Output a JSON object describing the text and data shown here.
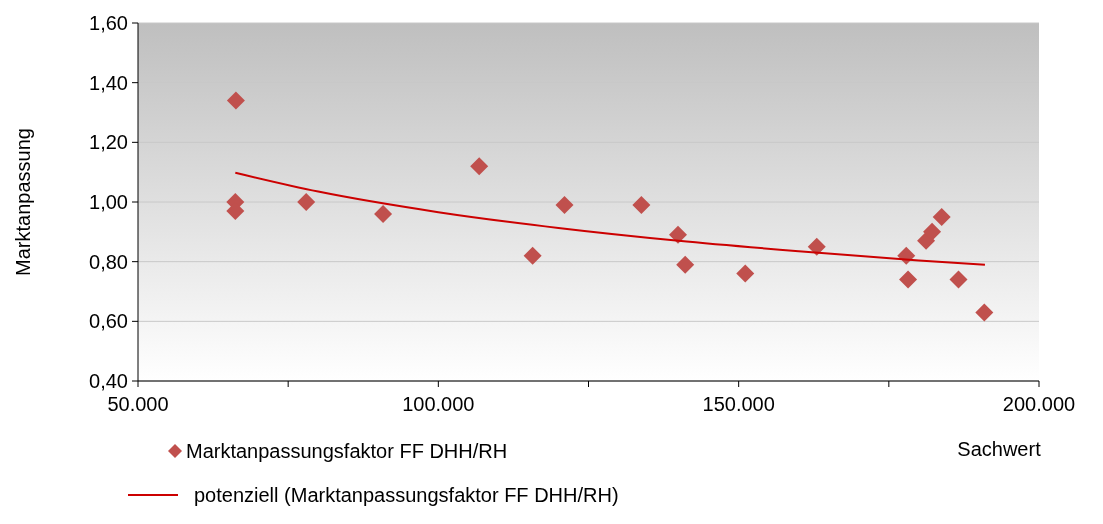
{
  "chart_data": {
    "type": "scatter",
    "xlabel": "Sachwert",
    "ylabel": "Marktanpassung",
    "xlim": [
      50000,
      200000
    ],
    "ylim": [
      0.4,
      1.6
    ],
    "xticks": [
      {
        "value": 50000,
        "label": "50.000"
      },
      {
        "value": 75000,
        "label": null
      },
      {
        "value": 100000,
        "label": "100.000"
      },
      {
        "value": 125000,
        "label": null
      },
      {
        "value": 150000,
        "label": "150.000"
      },
      {
        "value": 175000,
        "label": null
      },
      {
        "value": 200000,
        "label": "200.000"
      }
    ],
    "yticks": [
      {
        "value": 0.4,
        "label": "0,40"
      },
      {
        "value": 0.6,
        "label": "0,60"
      },
      {
        "value": 0.8,
        "label": "0,80"
      },
      {
        "value": 1.0,
        "label": "1,00"
      },
      {
        "value": 1.2,
        "label": "1,20"
      },
      {
        "value": 1.4,
        "label": "1,40"
      },
      {
        "value": 1.6,
        "label": "1,60"
      }
    ],
    "grid": "y",
    "legend": "bottom left",
    "series": [
      {
        "name": "Marktanpassungsfaktor FF DHH/RH",
        "marker": "diamond",
        "color": "#c0504d",
        "x": [
          66300,
          66200,
          66200,
          78000,
          90800,
          106800,
          115700,
          121000,
          133800,
          139900,
          141100,
          151100,
          163000,
          177900,
          178200,
          181200,
          182200,
          183800,
          186600,
          190900
        ],
        "values": [
          1.34,
          1.0,
          0.97,
          1.0,
          0.96,
          1.12,
          0.82,
          0.99,
          0.99,
          0.89,
          0.79,
          0.76,
          0.85,
          0.82,
          0.74,
          0.87,
          0.9,
          0.95,
          0.74,
          0.63
        ]
      },
      {
        "name": "potenziell (Marktanpassungsfaktor FF DHH/RH)",
        "type": "line",
        "marker": "none",
        "color": "#cc0000",
        "line_style": "solid",
        "x": [
          66200,
          80000,
          100000,
          120000,
          140000,
          160000,
          180000,
          191000
        ],
        "values": [
          1.098,
          1.035,
          0.966,
          0.913,
          0.87,
          0.835,
          0.804,
          0.79
        ]
      }
    ]
  }
}
